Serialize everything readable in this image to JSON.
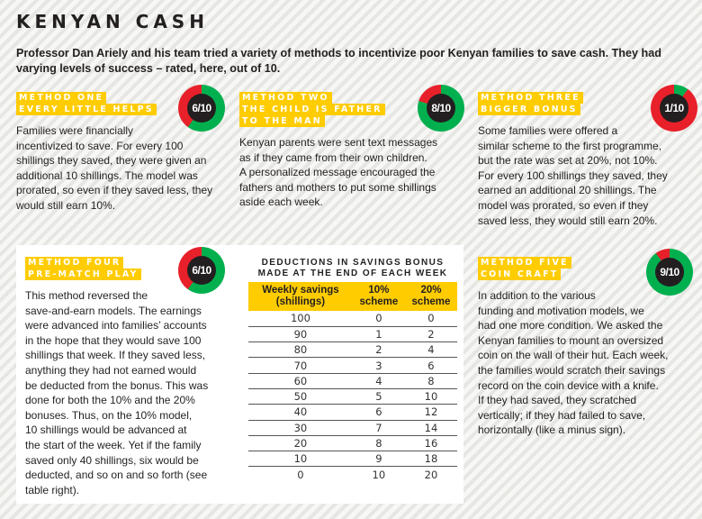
{
  "title": "KENYAN CASH",
  "intro": "Professor Dan Ariely and his team tried a variety of methods to incentivize poor Kenyan families to save cash. They had varying levels of success – rated, here, out of 10.",
  "colors": {
    "yellow": "#ffcc00",
    "green": "#00b04f",
    "red": "#e8202a",
    "dark": "#231f20"
  },
  "methods": [
    {
      "label": [
        "METHOD ONE",
        "EVERY LITTLE HELPS"
      ],
      "score": 6,
      "score_text": "6/10",
      "lines": [
        "Families were financially",
        "incentivized to save. For every 100",
        "shillings they saved, they were given an",
        "additional 10 shillings. The model was",
        "prorated, so even if they saved less, they",
        "would still earn 10%."
      ]
    },
    {
      "label": [
        "METHOD TWO",
        "THE CHILD IS FATHER",
        "TO THE MAN"
      ],
      "score": 8,
      "score_text": "8/10",
      "lines": [
        "Kenyan parents were sent text messages",
        "as if they came from their own children.",
        "A personalized message encouraged the",
        "fathers and mothers to put some shillings",
        "aside each week."
      ]
    },
    {
      "label": [
        "METHOD THREE",
        "BIGGER BONUS"
      ],
      "score": 1,
      "score_text": "1/10",
      "lines": [
        "Some families were offered a",
        "similar scheme to the first programme,",
        "but the rate was set at 20%, not 10%.",
        "For every 100 shillings they saved, they",
        "earned an additional 20 shillings. The",
        "model was prorated, so even if they",
        "saved less, they would still earn 20%."
      ]
    },
    {
      "label": [
        "METHOD FOUR",
        "PRE-MATCH PLAY"
      ],
      "score": 6,
      "score_text": "6/10",
      "lines": [
        "This method reversed the",
        "save-and-earn models. The earnings",
        "were advanced into families’ accounts",
        "in the hope that they would save 100",
        "shillings that week. If they saved less,",
        "anything they had not earned would",
        "be deducted from the bonus. This was",
        "done for both the 10% and the 20%",
        "bonuses. Thus, on the 10% model,",
        "10 shillings would be advanced at",
        "the start of the week. Yet if the family",
        "saved only 40 shillings, six would be",
        "deducted, and so on and so forth (see",
        "table right)."
      ]
    },
    {
      "label": [
        "METHOD FIVE",
        "COIN CRAFT"
      ],
      "score": 9,
      "score_text": "9/10",
      "lines": [
        "In addition to the various",
        "funding and motivation models, we",
        "had one more condition. We asked the",
        "Kenyan families to mount an oversized",
        "coin on the wall of their hut. Each week,",
        "the families would scratch their savings",
        "record on the coin device with a knife.",
        "If they had saved, they scratched",
        "vertically; if they had failed to save,",
        "horizontally (like a minus sign)."
      ]
    }
  ],
  "table": {
    "title": [
      "DEDUCTIONS IN SAVINGS BONUS",
      "MADE AT THE END OF EACH WEEK"
    ],
    "headers": [
      [
        "Weekly savings",
        "(shillings)"
      ],
      [
        "10%",
        "scheme"
      ],
      [
        "20%",
        "scheme"
      ]
    ],
    "rows": [
      [
        "100",
        "0",
        "0"
      ],
      [
        "90",
        "1",
        "2"
      ],
      [
        "80",
        "2",
        "4"
      ],
      [
        "70",
        "3",
        "6"
      ],
      [
        "60",
        "4",
        "8"
      ],
      [
        "50",
        "5",
        "10"
      ],
      [
        "40",
        "6",
        "12"
      ],
      [
        "30",
        "7",
        "14"
      ],
      [
        "20",
        "8",
        "16"
      ],
      [
        "10",
        "9",
        "18"
      ],
      [
        "0",
        "10",
        "20"
      ]
    ]
  }
}
